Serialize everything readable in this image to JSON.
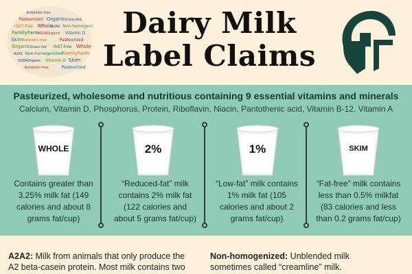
{
  "header": {
    "title_line1": "Dairy Milk",
    "title_line2": "Label Claims",
    "wordcloud_words": [
      "Antibiotic-free",
      "Pasteurized",
      "Organic",
      "Grass-fed",
      "rbST-free",
      "Whole",
      "A2A2",
      "Non-homogenized",
      "FamilyFarm",
      "USDAOrganic",
      "Vitamin D",
      "Skim"
    ],
    "logo_icon": "spartan-helmet-icon",
    "logo_color": "#18453b"
  },
  "panel": {
    "headline": "Pasteurized, wholesome and nutritious containing 9 essential vitamins and minerals",
    "subline": "Calcium, Vitamin D, Phosphorus, Protein, Riboflavin, Niacin, Pantothenic acid, Vitamin B-12, Vitamin A",
    "background": "#8fcbb7",
    "milks": [
      {
        "label": "WHOLE",
        "desc": [
          "Contains greater than",
          "3.25% milk fat (149",
          "calories and about 8",
          "grams fat/cup)"
        ]
      },
      {
        "label": "2%",
        "desc": [
          "“Reduced-fat” milk",
          "contains 2% milk fat",
          "(122 calories and",
          "about 5 grams fat/cup)"
        ]
      },
      {
        "label": "1%",
        "desc": [
          "“Low-fat” milk contains",
          "1% milk fat (105",
          "calories and about 2",
          "grams fat/cup)"
        ]
      },
      {
        "label": "SKIM",
        "desc": [
          "“Fat-free” milk contains",
          "less than 0.5% milkfat",
          "(83 calories and less",
          "than 0.2 grams fat/cup)"
        ]
      }
    ]
  },
  "footer": {
    "left_term": "A2A2:",
    "left_line1": " Milk from animals that only produce the",
    "left_line2": "A2 beta-casein protein. Most milk contains two",
    "right_term": "Non-homogenized:",
    "right_line1": " Unblended milk",
    "right_line2": "sometimes called “creamline” milk."
  }
}
